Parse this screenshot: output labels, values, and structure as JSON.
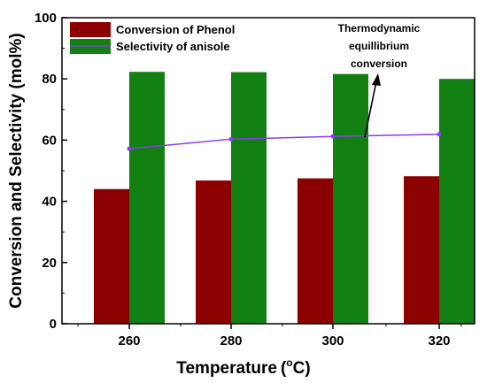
{
  "chart_data": {
    "type": "bar",
    "categories": [
      "260",
      "280",
      "300",
      "320"
    ],
    "series": [
      {
        "name": "Conversion of Phenol",
        "values": [
          44.0,
          46.8,
          47.5,
          48.2
        ],
        "color": "#8b0000"
      },
      {
        "name": "Selectivity of anisole",
        "values": [
          82.3,
          82.2,
          81.6,
          80.0
        ],
        "color": "#128012"
      }
    ],
    "line_series": {
      "values": [
        57.2,
        60.3,
        61.2,
        61.9
      ],
      "color": "#8a3df0"
    },
    "annotation": [
      "Thermodynamic",
      "equillibrium",
      "conversion"
    ],
    "xlabel": "Temperature",
    "xlabel_unit_prefix": "(",
    "xlabel_unit_sup": "o",
    "xlabel_unit_suffix": "C)",
    "ylabel": "Conversion and Selectivity (mol%)",
    "ylim": [
      0,
      100
    ],
    "yticks": [
      "0",
      "20",
      "40",
      "60",
      "80",
      "100"
    ],
    "grid": false,
    "legend_position": "top-left"
  }
}
